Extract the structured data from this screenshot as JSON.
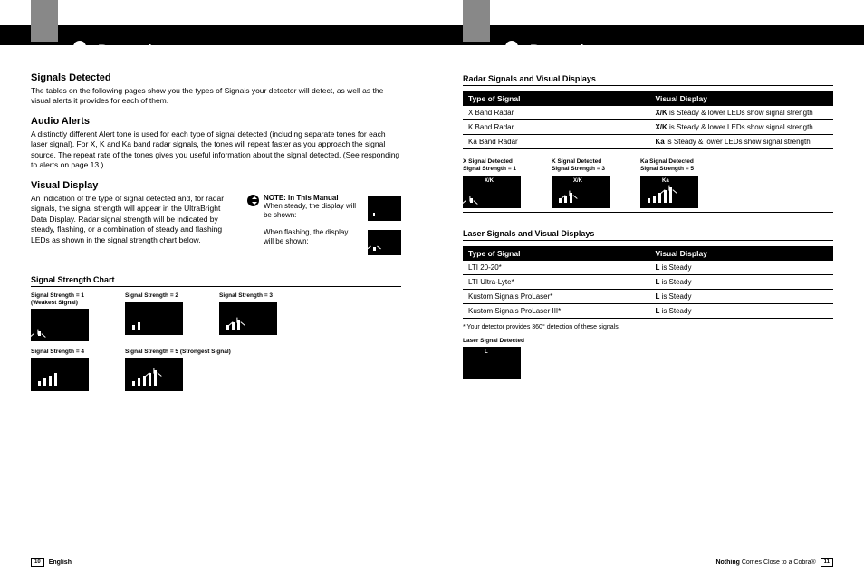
{
  "header": {
    "title": "Detection",
    "your_detector": "Your Detector"
  },
  "left": {
    "signals_title": "Signals Detected",
    "signals_text": "The tables on the following pages show you the types of Signals your detector will detect, as well as the visual alerts it provides for each of them.",
    "audio_title": "Audio Alerts",
    "audio_text": "A distinctly different Alert tone is used for each type of signal detected (including separate tones for each laser signal). For X, K and Ka band radar signals, the tones will repeat faster as you approach the signal source. The repeat rate of the tones gives you useful information about the signal detected. (See responding to alerts on page 13.)",
    "visual_title": "Visual Display",
    "visual_text": "An indication of the type of signal detected and, for radar signals, the signal strength will appear in the UltraBright Data Display. Radar signal strength will be indicated by steady, flashing, or a combination of steady and flashing LEDs as shown in the signal strength chart below.",
    "note_title": "NOTE: In This Manual",
    "note_steady": "When steady, the display will be shown:",
    "note_flashing": "When flashing, the display will be shown:",
    "chart_title": "Signal Strength Chart",
    "strengths": [
      {
        "label": "Signal Strength = 1\n(Weakest Signal)",
        "bars": 1,
        "flash": true
      },
      {
        "label": "Signal Strength = 2",
        "bars": 2,
        "flash": false
      },
      {
        "label": "Signal Strength = 3",
        "bars": 3,
        "flash": true
      },
      {
        "label": "Signal Strength = 4",
        "bars": 4,
        "flash": false
      },
      {
        "label": "Signal Strength = 5 (Strongest Signal)",
        "bars": 5,
        "flash": true
      }
    ]
  },
  "right": {
    "radar_title": "Radar Signals and Visual Displays",
    "th_type": "Type of Signal",
    "th_display": "Visual Display",
    "radar_rows": [
      {
        "type": "X Band Radar",
        "disp_bold": "X/K",
        "disp_rest": " is Steady & lower LEDs show signal strength"
      },
      {
        "type": "K Band Radar",
        "disp_bold": "X/K",
        "disp_rest": " is Steady & lower LEDs show signal strength"
      },
      {
        "type": "Ka Band Radar",
        "disp_bold": "Ka",
        "disp_rest": " is Steady & lower LEDs show signal strength"
      }
    ],
    "examples": [
      {
        "l1": "X Signal Detected",
        "l2": "Signal Strength = 1",
        "ind": "X/K",
        "bars": 1
      },
      {
        "l1": "K Signal Detected",
        "l2": "Signal Strength = 3",
        "ind": "X/K",
        "bars": 3
      },
      {
        "l1": "Ka Signal Detected",
        "l2": "Signal Strength = 5",
        "ind": "Ka",
        "bars": 5
      }
    ],
    "laser_title": "Laser Signals and Visual Displays",
    "laser_rows": [
      {
        "type": "LTI 20-20*",
        "disp_bold": "L",
        "disp_rest": " is Steady"
      },
      {
        "type": "LTI Ultra-Lyte*",
        "disp_bold": "L",
        "disp_rest": " is Steady"
      },
      {
        "type": "Kustom Signals ProLaser*",
        "disp_bold": "L",
        "disp_rest": " is Steady"
      },
      {
        "type": "Kustom Signals ProLaser III*",
        "disp_bold": "L",
        "disp_rest": " is Steady"
      }
    ],
    "laser_footnote": "* Your detector provides 360° detection of these signals.",
    "laser_detected": "Laser Signal Detected",
    "laser_ind": "L"
  },
  "footer": {
    "left_pg": "10",
    "left_text": "English",
    "right_text_bold": "Nothing",
    "right_text": " Comes Close to a Cobra®",
    "right_pg": "11"
  }
}
